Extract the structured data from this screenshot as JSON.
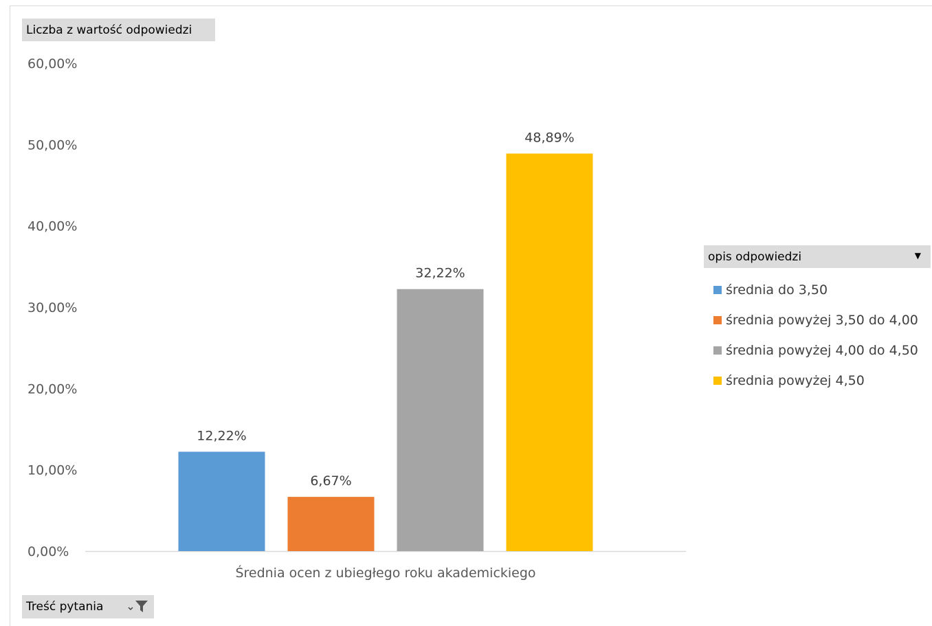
{
  "fields": {
    "value_field": "Liczba z wartość odpowiedzi",
    "axis_field": "Treść pytania",
    "legend_field": "opis odpowiedzi"
  },
  "chart_data": {
    "type": "bar",
    "title": "",
    "categories": [
      "Średnia ocen z ubiegłego roku akademickiego"
    ],
    "xlabel": "",
    "ylabel": "",
    "ylim": [
      0,
      60
    ],
    "yticks": [
      "0,00%",
      "10,00%",
      "20,00%",
      "30,00%",
      "40,00%",
      "50,00%",
      "60,00%"
    ],
    "grid": false,
    "legend_position": "right",
    "series": [
      {
        "name": "średnia do 3,50",
        "values": [
          12.22
        ],
        "label": "12,22%",
        "color": "#5b9bd5"
      },
      {
        "name": "średnia powyżej 3,50 do 4,00",
        "values": [
          6.67
        ],
        "label": "6,67%",
        "color": "#ed7d31"
      },
      {
        "name": "średnia powyżej 4,00 do 4,50",
        "values": [
          32.22
        ],
        "label": "32,22%",
        "color": "#a5a5a5"
      },
      {
        "name": "średnia powyżej 4,50",
        "values": [
          48.89
        ],
        "label": "48,89%",
        "color": "#ffc000"
      }
    ]
  }
}
